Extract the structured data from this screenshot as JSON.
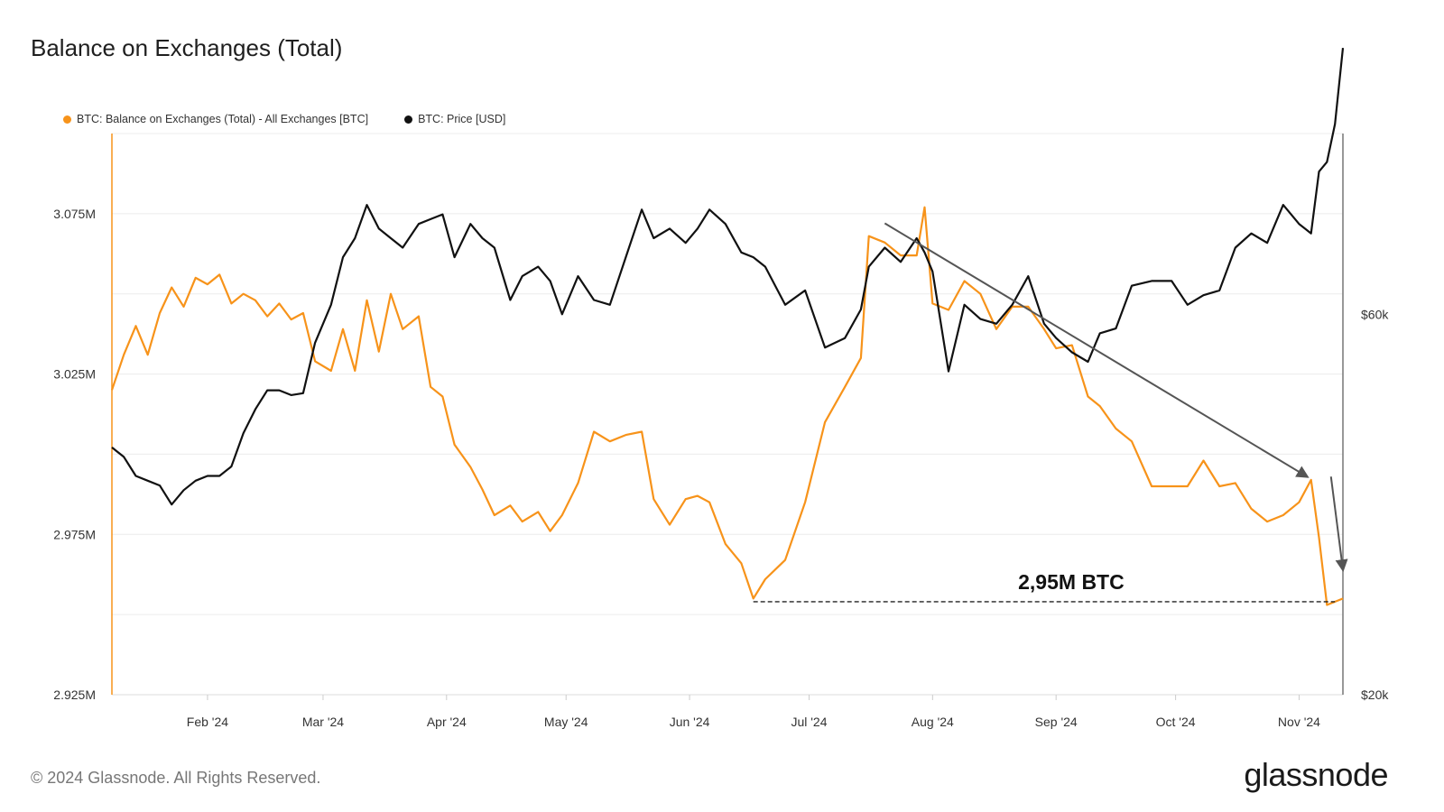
{
  "title": "Balance on Exchanges (Total)",
  "footer": "© 2024 Glassnode. All Rights Reserved.",
  "brand": "glassnode",
  "colors": {
    "balance": "#f7931a",
    "price": "#111111",
    "arrow": "#555555",
    "grid": "#ececec"
  },
  "chart_data": {
    "type": "line",
    "title": "Balance on Exchanges (Total)",
    "legend_placement": "top-left",
    "grid": true,
    "x_ticks": [
      "Feb '24",
      "Mar '24",
      "Apr '24",
      "May '24",
      "Jun '24",
      "Jul '24",
      "Aug '24",
      "Sep '24",
      "Oct '24",
      "Nov '24"
    ],
    "x_range": [
      "2024-01-08",
      "2024-11-12"
    ],
    "y_left": {
      "ticks": [
        "3.075M",
        "3.025M",
        "2.975M",
        "2.925M"
      ],
      "lim": [
        2.925,
        3.1
      ]
    },
    "y_right": {
      "ticks": [
        "$60k",
        "$20k"
      ],
      "lim": [
        20000,
        79000
      ]
    },
    "series": [
      {
        "name": "BTC: Balance on Exchanges (Total) - All Exchanges [BTC]",
        "axis": "left",
        "points": [
          [
            "2024-01-08",
            3.02
          ],
          [
            "2024-01-11",
            3.031
          ],
          [
            "2024-01-14",
            3.04
          ],
          [
            "2024-01-17",
            3.031
          ],
          [
            "2024-01-20",
            3.044
          ],
          [
            "2024-01-23",
            3.052
          ],
          [
            "2024-01-26",
            3.046
          ],
          [
            "2024-01-29",
            3.055
          ],
          [
            "2024-02-01",
            3.053
          ],
          [
            "2024-02-04",
            3.056
          ],
          [
            "2024-02-07",
            3.047
          ],
          [
            "2024-02-10",
            3.05
          ],
          [
            "2024-02-13",
            3.048
          ],
          [
            "2024-02-16",
            3.043
          ],
          [
            "2024-02-19",
            3.047
          ],
          [
            "2024-02-22",
            3.042
          ],
          [
            "2024-02-25",
            3.044
          ],
          [
            "2024-02-28",
            3.029
          ],
          [
            "2024-03-03",
            3.026
          ],
          [
            "2024-03-06",
            3.039
          ],
          [
            "2024-03-09",
            3.026
          ],
          [
            "2024-03-12",
            3.048
          ],
          [
            "2024-03-15",
            3.032
          ],
          [
            "2024-03-18",
            3.05
          ],
          [
            "2024-03-21",
            3.039
          ],
          [
            "2024-03-25",
            3.043
          ],
          [
            "2024-03-28",
            3.021
          ],
          [
            "2024-03-31",
            3.018
          ],
          [
            "2024-04-03",
            3.003
          ],
          [
            "2024-04-07",
            2.996
          ],
          [
            "2024-04-10",
            2.989
          ],
          [
            "2024-04-13",
            2.981
          ],
          [
            "2024-04-17",
            2.984
          ],
          [
            "2024-04-20",
            2.979
          ],
          [
            "2024-04-24",
            2.982
          ],
          [
            "2024-04-27",
            2.976
          ],
          [
            "2024-04-30",
            2.981
          ],
          [
            "2024-05-04",
            2.991
          ],
          [
            "2024-05-08",
            3.007
          ],
          [
            "2024-05-12",
            3.004
          ],
          [
            "2024-05-16",
            3.006
          ],
          [
            "2024-05-20",
            3.007
          ],
          [
            "2024-05-23",
            2.986
          ],
          [
            "2024-05-27",
            2.978
          ],
          [
            "2024-05-31",
            2.986
          ],
          [
            "2024-06-03",
            2.987
          ],
          [
            "2024-06-06",
            2.985
          ],
          [
            "2024-06-10",
            2.972
          ],
          [
            "2024-06-14",
            2.966
          ],
          [
            "2024-06-17",
            2.955
          ],
          [
            "2024-06-20",
            2.961
          ],
          [
            "2024-06-25",
            2.967
          ],
          [
            "2024-06-30",
            2.985
          ],
          [
            "2024-07-05",
            3.01
          ],
          [
            "2024-07-10",
            3.021
          ],
          [
            "2024-07-14",
            3.03
          ],
          [
            "2024-07-16",
            3.068
          ],
          [
            "2024-07-20",
            3.066
          ],
          [
            "2024-07-24",
            3.062
          ],
          [
            "2024-07-28",
            3.062
          ],
          [
            "2024-07-30",
            3.077
          ],
          [
            "2024-08-01",
            3.047
          ],
          [
            "2024-08-05",
            3.045
          ],
          [
            "2024-08-09",
            3.054
          ],
          [
            "2024-08-13",
            3.05
          ],
          [
            "2024-08-17",
            3.039
          ],
          [
            "2024-08-21",
            3.046
          ],
          [
            "2024-08-25",
            3.046
          ],
          [
            "2024-08-29",
            3.039
          ],
          [
            "2024-09-01",
            3.033
          ],
          [
            "2024-09-05",
            3.034
          ],
          [
            "2024-09-09",
            3.018
          ],
          [
            "2024-09-12",
            3.015
          ],
          [
            "2024-09-16",
            3.008
          ],
          [
            "2024-09-20",
            3.004
          ],
          [
            "2024-09-25",
            2.99
          ],
          [
            "2024-09-30",
            2.99
          ],
          [
            "2024-10-04",
            2.99
          ],
          [
            "2024-10-08",
            2.998
          ],
          [
            "2024-10-12",
            2.99
          ],
          [
            "2024-10-16",
            2.991
          ],
          [
            "2024-10-20",
            2.983
          ],
          [
            "2024-10-24",
            2.979
          ],
          [
            "2024-10-28",
            2.981
          ],
          [
            "2024-11-01",
            2.985
          ],
          [
            "2024-11-04",
            2.992
          ],
          [
            "2024-11-06",
            2.974
          ],
          [
            "2024-11-08",
            2.953
          ],
          [
            "2024-11-12",
            2.955
          ]
        ]
      },
      {
        "name": "BTC: Price [USD]",
        "axis": "right",
        "points": [
          [
            "2024-01-08",
            46000
          ],
          [
            "2024-01-11",
            45000
          ],
          [
            "2024-01-14",
            43000
          ],
          [
            "2024-01-17",
            42500
          ],
          [
            "2024-01-20",
            42000
          ],
          [
            "2024-01-23",
            40000
          ],
          [
            "2024-01-26",
            41500
          ],
          [
            "2024-01-29",
            42500
          ],
          [
            "2024-02-01",
            43000
          ],
          [
            "2024-02-04",
            43000
          ],
          [
            "2024-02-07",
            44000
          ],
          [
            "2024-02-10",
            47500
          ],
          [
            "2024-02-13",
            50000
          ],
          [
            "2024-02-16",
            52000
          ],
          [
            "2024-02-19",
            52000
          ],
          [
            "2024-02-22",
            51500
          ],
          [
            "2024-02-25",
            51700
          ],
          [
            "2024-02-28",
            57000
          ],
          [
            "2024-03-03",
            61000
          ],
          [
            "2024-03-06",
            66000
          ],
          [
            "2024-03-09",
            68000
          ],
          [
            "2024-03-12",
            71500
          ],
          [
            "2024-03-15",
            69000
          ],
          [
            "2024-03-18",
            68000
          ],
          [
            "2024-03-21",
            67000
          ],
          [
            "2024-03-25",
            69500
          ],
          [
            "2024-03-28",
            70000
          ],
          [
            "2024-03-31",
            70500
          ],
          [
            "2024-04-03",
            66000
          ],
          [
            "2024-04-07",
            69500
          ],
          [
            "2024-04-10",
            68000
          ],
          [
            "2024-04-13",
            67000
          ],
          [
            "2024-04-17",
            61500
          ],
          [
            "2024-04-20",
            64000
          ],
          [
            "2024-04-24",
            65000
          ],
          [
            "2024-04-27",
            63500
          ],
          [
            "2024-04-30",
            60000
          ],
          [
            "2024-05-04",
            64000
          ],
          [
            "2024-05-08",
            61500
          ],
          [
            "2024-05-12",
            61000
          ],
          [
            "2024-05-16",
            66000
          ],
          [
            "2024-05-20",
            71000
          ],
          [
            "2024-05-23",
            68000
          ],
          [
            "2024-05-27",
            69000
          ],
          [
            "2024-05-31",
            67500
          ],
          [
            "2024-06-03",
            69000
          ],
          [
            "2024-06-06",
            71000
          ],
          [
            "2024-06-10",
            69500
          ],
          [
            "2024-06-14",
            66500
          ],
          [
            "2024-06-17",
            66000
          ],
          [
            "2024-06-20",
            65000
          ],
          [
            "2024-06-25",
            61000
          ],
          [
            "2024-06-30",
            62500
          ],
          [
            "2024-07-05",
            56500
          ],
          [
            "2024-07-10",
            57500
          ],
          [
            "2024-07-14",
            60500
          ],
          [
            "2024-07-16",
            65000
          ],
          [
            "2024-07-20",
            67000
          ],
          [
            "2024-07-24",
            65500
          ],
          [
            "2024-07-28",
            68000
          ],
          [
            "2024-07-30",
            66500
          ],
          [
            "2024-08-01",
            64500
          ],
          [
            "2024-08-05",
            54000
          ],
          [
            "2024-08-09",
            61000
          ],
          [
            "2024-08-13",
            59500
          ],
          [
            "2024-08-17",
            59000
          ],
          [
            "2024-08-21",
            61000
          ],
          [
            "2024-08-25",
            64000
          ],
          [
            "2024-08-29",
            59000
          ],
          [
            "2024-09-01",
            57500
          ],
          [
            "2024-09-05",
            56000
          ],
          [
            "2024-09-09",
            55000
          ],
          [
            "2024-09-12",
            58000
          ],
          [
            "2024-09-16",
            58500
          ],
          [
            "2024-09-20",
            63000
          ],
          [
            "2024-09-25",
            63500
          ],
          [
            "2024-09-30",
            63500
          ],
          [
            "2024-10-04",
            61000
          ],
          [
            "2024-10-08",
            62000
          ],
          [
            "2024-10-12",
            62500
          ],
          [
            "2024-10-16",
            67000
          ],
          [
            "2024-10-20",
            68500
          ],
          [
            "2024-10-24",
            67500
          ],
          [
            "2024-10-28",
            71500
          ],
          [
            "2024-11-01",
            69500
          ],
          [
            "2024-11-04",
            68500
          ],
          [
            "2024-11-06",
            75000
          ],
          [
            "2024-11-08",
            76000
          ],
          [
            "2024-11-10",
            80000
          ],
          [
            "2024-11-12",
            88000
          ]
        ]
      }
    ],
    "annotations": [
      {
        "type": "hline",
        "axis": "left",
        "y": 2.954,
        "from": "2024-06-17",
        "to": "2024-11-10",
        "style": "dashed",
        "label": "2,95M BTC"
      },
      {
        "type": "arrow",
        "from": [
          "2024-07-20",
          3.072
        ],
        "to": [
          "2024-11-03",
          2.993
        ]
      },
      {
        "type": "arrow",
        "from": [
          "2024-11-09",
          2.993
        ],
        "to": [
          "2024-11-12",
          2.964
        ]
      }
    ]
  }
}
